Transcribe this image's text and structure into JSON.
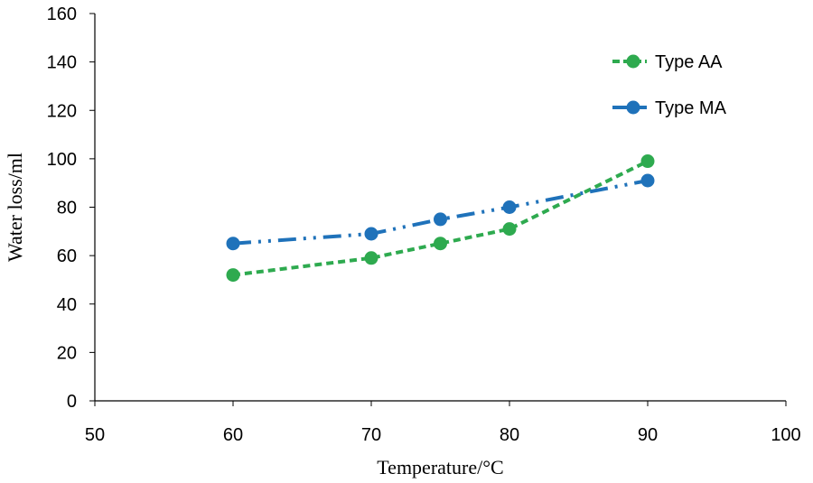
{
  "chart_data": {
    "type": "line",
    "title": "",
    "xlabel": "Temperature/°C",
    "ylabel": "Water loss/ml",
    "xlim": [
      50,
      100
    ],
    "ylim": [
      0,
      160
    ],
    "xticks": [
      50,
      60,
      70,
      80,
      90,
      100
    ],
    "yticks": [
      0,
      20,
      40,
      60,
      80,
      100,
      120,
      140,
      160
    ],
    "grid": false,
    "legend_position": "top-right",
    "series": [
      {
        "name": "Type AA",
        "color": "#2EAA4F",
        "line_style": "dashed",
        "x": [
          60,
          70,
          75,
          80,
          90
        ],
        "values": [
          52,
          59,
          65,
          71,
          99
        ]
      },
      {
        "name": "Type MA",
        "color": "#1F72BA",
        "line_style": "dash-dot-dot",
        "x": [
          60,
          70,
          75,
          80,
          90
        ],
        "values": [
          65,
          69,
          75,
          80,
          91
        ]
      }
    ]
  }
}
